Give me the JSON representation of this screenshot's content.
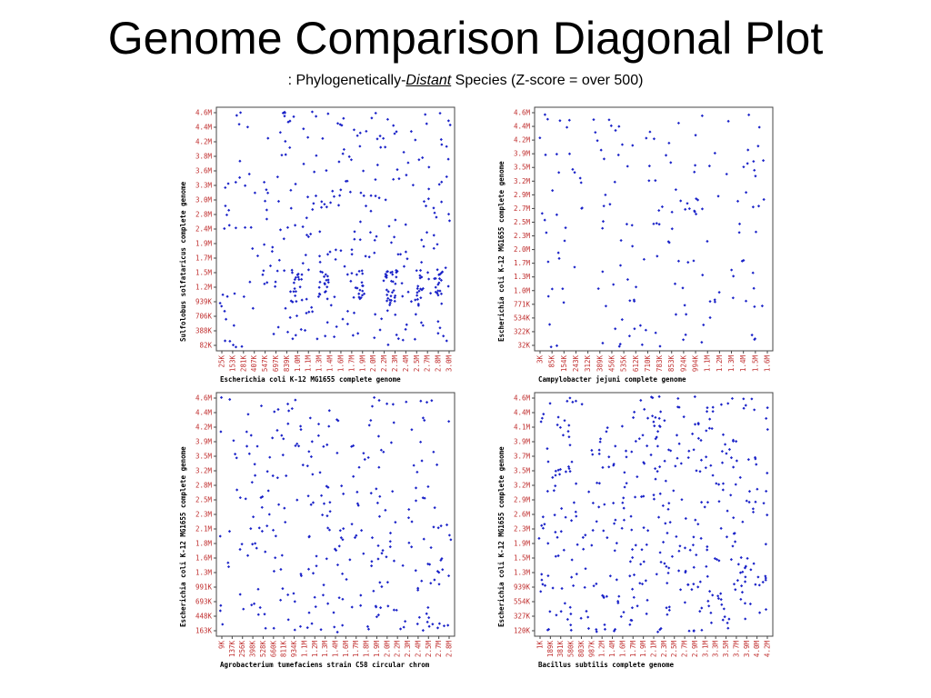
{
  "slide": {
    "title": "Genome Comparison Diagonal Plot",
    "subtitle_prefix": ": Phylogenetically-",
    "subtitle_emph": "Distant",
    "subtitle_suffix": " Species (Z-score = over 500)"
  },
  "colors": {
    "dot": "#1a22c8",
    "xtick": "#c03030",
    "ytick": "#c03030",
    "frame": "#444444",
    "grid": "#dddddd"
  },
  "chart_data": [
    {
      "type": "scatter",
      "xlabel": "Escherichia coli K-12 MG1655 complete genome",
      "ylabel": "Sulfolobus solfataricus complete genome",
      "x_ticks": [
        "25K",
        "153K",
        "281K",
        "407K",
        "547K",
        "697K",
        "839K",
        "1.0M",
        "1.1M",
        "1.3M",
        "1.4M",
        "1.6M",
        "1.7M",
        "1.9M",
        "2.0M",
        "2.2M",
        "2.3M",
        "2.4M",
        "2.5M",
        "2.7M",
        "2.8M",
        "3.0M"
      ],
      "y_ticks": [
        "82K",
        "388K",
        "706K",
        "939K",
        "1.2M",
        "1.5M",
        "1.7M",
        "1.9M",
        "2.4M",
        "2.8M",
        "3.0M",
        "3.3M",
        "3.6M",
        "3.8M",
        "4.2M",
        "4.4M",
        "4.6M"
      ],
      "grid": false,
      "series_seed": 11,
      "series_count": 300,
      "cluster_band": [
        0.18,
        0.33
      ]
    },
    {
      "type": "scatter",
      "xlabel": "Campylobacter jejuni complete genome",
      "ylabel": "Escherichia coli K-12 MG1655 complete genome",
      "x_ticks": [
        "3K",
        "85K",
        "154K",
        "243K",
        "312K",
        "389K",
        "456K",
        "535K",
        "612K",
        "710K",
        "783K",
        "853K",
        "924K",
        "994K",
        "1.1M",
        "1.2M",
        "1.3M",
        "1.4M",
        "1.5M",
        "1.6M"
      ],
      "y_ticks": [
        "32K",
        "322K",
        "534K",
        "771K",
        "1.0M",
        "1.3M",
        "1.7M",
        "2.0M",
        "2.3M",
        "2.5M",
        "2.7M",
        "2.9M",
        "3.2M",
        "3.5M",
        "3.9M",
        "4.2M",
        "4.4M",
        "4.6M"
      ],
      "grid": false,
      "series_seed": 29,
      "series_count": 170,
      "cluster_band": null
    },
    {
      "type": "scatter",
      "xlabel": "Agrobacterium tumefaciens strain C58 circular chrom",
      "ylabel": "Escherichia coli K-12 MG1655 complete genome",
      "x_ticks": [
        "9K",
        "137K",
        "256K",
        "398K",
        "528K",
        "660K",
        "811K",
        "934K",
        "1.1M",
        "1.2M",
        "1.3M",
        "1.4M",
        "1.6M",
        "1.7M",
        "1.8M",
        "1.9M",
        "2.0M",
        "2.2M",
        "2.3M",
        "2.4M",
        "2.5M",
        "2.7M",
        "2.8M"
      ],
      "y_ticks": [
        "163K",
        "448K",
        "693K",
        "991K",
        "1.3M",
        "1.6M",
        "1.8M",
        "2.1M",
        "2.3M",
        "2.5M",
        "2.8M",
        "3.2M",
        "3.5M",
        "3.9M",
        "4.2M",
        "4.4M",
        "4.6M"
      ],
      "grid": false,
      "series_seed": 47,
      "series_count": 290,
      "cluster_band": null
    },
    {
      "type": "scatter",
      "xlabel": "Bacillus subtilis complete genome",
      "ylabel": "Escherichia coli K-12 MG1655 complete genome",
      "x_ticks": [
        "1K",
        "189K",
        "381K",
        "580K",
        "803K",
        "987K",
        "1.2M",
        "1.4M",
        "1.6M",
        "1.7M",
        "1.9M",
        "2.1M",
        "2.3M",
        "2.5M",
        "2.7M",
        "2.9M",
        "3.1M",
        "3.3M",
        "3.5M",
        "3.7M",
        "3.9M",
        "4.0M",
        "4.2M"
      ],
      "y_ticks": [
        "120K",
        "327K",
        "554K",
        "939K",
        "1.3M",
        "1.5M",
        "1.9M",
        "2.3M",
        "2.6M",
        "2.9M",
        "3.2M",
        "3.5M",
        "3.7M",
        "3.9M",
        "4.1M",
        "4.4M",
        "4.6M"
      ],
      "grid": false,
      "series_seed": 83,
      "series_count": 420,
      "cluster_band": null
    }
  ]
}
